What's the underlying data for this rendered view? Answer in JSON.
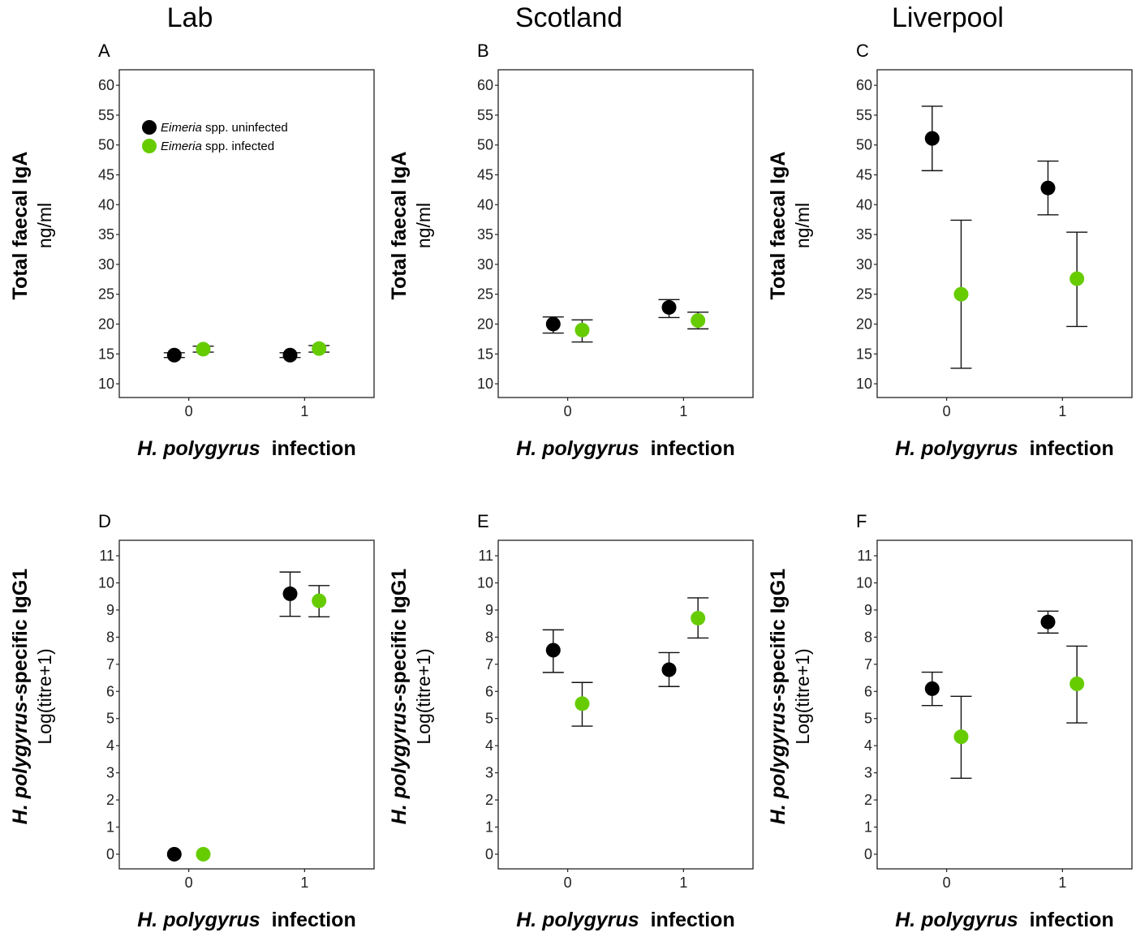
{
  "colors": {
    "uninfected": "#000000",
    "infected": "#66CC00"
  },
  "legend": [
    {
      "italic": "Eimeria",
      "rest": " spp. uninfected",
      "series": "uninfected"
    },
    {
      "italic": "Eimeria",
      "rest": " spp. infected",
      "series": "infected"
    }
  ],
  "column_titles": [
    "Lab",
    "Scotland",
    "Liverpool"
  ],
  "xlabel": {
    "italic": "H. polygyrus",
    "rest": "  infection"
  },
  "ylabels": {
    "iga": {
      "main": "Total faecal IgA",
      "sub": "ng/ml"
    },
    "igg1": {
      "main_italic": "H. polygyrus",
      "main_rest": "-specific IgG1",
      "sub": "Log(titre+1)"
    }
  },
  "chart_data": [
    {
      "panel": "A",
      "column": "Lab",
      "type": "scatter",
      "measure": "iga",
      "xlim": [
        -0.6,
        1.6
      ],
      "ylim": [
        7.7,
        62.6
      ],
      "xticks": [
        0,
        1
      ],
      "yticks": [
        10,
        15,
        20,
        25,
        30,
        35,
        40,
        45,
        50,
        55,
        60
      ],
      "legend_position": "top-left",
      "series": [
        {
          "name": "Eimeria spp. uninfected",
          "key": "uninfected",
          "points": [
            {
              "x": 0,
              "y": 14.8,
              "lo": 14.4,
              "hi": 15.2
            },
            {
              "x": 1,
              "y": 14.8,
              "lo": 14.4,
              "hi": 15.2
            }
          ]
        },
        {
          "name": "Eimeria spp. infected",
          "key": "infected",
          "points": [
            {
              "x": 0,
              "y": 15.8,
              "lo": 15.3,
              "hi": 16.3
            },
            {
              "x": 1,
              "y": 15.9,
              "lo": 15.3,
              "hi": 16.4
            }
          ]
        }
      ]
    },
    {
      "panel": "B",
      "column": "Scotland",
      "type": "scatter",
      "measure": "iga",
      "xlim": [
        -0.6,
        1.6
      ],
      "ylim": [
        7.7,
        62.6
      ],
      "xticks": [
        0,
        1
      ],
      "yticks": [
        10,
        15,
        20,
        25,
        30,
        35,
        40,
        45,
        50,
        55,
        60
      ],
      "series": [
        {
          "name": "Eimeria spp. uninfected",
          "key": "uninfected",
          "points": [
            {
              "x": 0,
              "y": 20.0,
              "lo": 18.5,
              "hi": 21.2
            },
            {
              "x": 1,
              "y": 22.8,
              "lo": 21.1,
              "hi": 24.1
            }
          ]
        },
        {
          "name": "Eimeria spp. infected",
          "key": "infected",
          "points": [
            {
              "x": 0,
              "y": 19.0,
              "lo": 17.0,
              "hi": 20.7
            },
            {
              "x": 1,
              "y": 20.6,
              "lo": 19.2,
              "hi": 22.0
            }
          ]
        }
      ]
    },
    {
      "panel": "C",
      "column": "Liverpool",
      "type": "scatter",
      "measure": "iga",
      "xlim": [
        -0.6,
        1.6
      ],
      "ylim": [
        7.7,
        62.6
      ],
      "xticks": [
        0,
        1
      ],
      "yticks": [
        10,
        15,
        20,
        25,
        30,
        35,
        40,
        45,
        50,
        55,
        60
      ],
      "series": [
        {
          "name": "Eimeria spp. uninfected",
          "key": "uninfected",
          "points": [
            {
              "x": 0,
              "y": 51.1,
              "lo": 45.7,
              "hi": 56.5
            },
            {
              "x": 1,
              "y": 42.8,
              "lo": 38.3,
              "hi": 47.3
            }
          ]
        },
        {
          "name": "Eimeria spp. infected",
          "key": "infected",
          "points": [
            {
              "x": 0,
              "y": 25.0,
              "lo": 12.6,
              "hi": 37.4
            },
            {
              "x": 1,
              "y": 27.6,
              "lo": 19.6,
              "hi": 35.4
            }
          ]
        }
      ]
    },
    {
      "panel": "D",
      "column": "Lab",
      "type": "scatter",
      "measure": "igg1",
      "xlim": [
        -0.6,
        1.6
      ],
      "ylim": [
        -0.54,
        11.57
      ],
      "xticks": [
        0,
        1
      ],
      "yticks": [
        0,
        1,
        2,
        3,
        4,
        5,
        6,
        7,
        8,
        9,
        10,
        11
      ],
      "series": [
        {
          "name": "Eimeria spp. uninfected",
          "key": "uninfected",
          "points": [
            {
              "x": 0,
              "y": 0.0,
              "lo": 0.0,
              "hi": 0.0
            },
            {
              "x": 1,
              "y": 9.6,
              "lo": 8.77,
              "hi": 10.4
            }
          ]
        },
        {
          "name": "Eimeria spp. infected",
          "key": "infected",
          "points": [
            {
              "x": 0,
              "y": 0.0,
              "lo": 0.0,
              "hi": 0.0
            },
            {
              "x": 1,
              "y": 9.34,
              "lo": 8.75,
              "hi": 9.9
            }
          ]
        }
      ]
    },
    {
      "panel": "E",
      "column": "Scotland",
      "type": "scatter",
      "measure": "igg1",
      "xlim": [
        -0.6,
        1.6
      ],
      "ylim": [
        -0.54,
        11.57
      ],
      "xticks": [
        0,
        1
      ],
      "yticks": [
        0,
        1,
        2,
        3,
        4,
        5,
        6,
        7,
        8,
        9,
        10,
        11
      ],
      "series": [
        {
          "name": "Eimeria spp. uninfected",
          "key": "uninfected",
          "points": [
            {
              "x": 0,
              "y": 7.52,
              "lo": 6.7,
              "hi": 8.27
            },
            {
              "x": 1,
              "y": 6.8,
              "lo": 6.18,
              "hi": 7.43
            }
          ]
        },
        {
          "name": "Eimeria spp. infected",
          "key": "infected",
          "points": [
            {
              "x": 0,
              "y": 5.55,
              "lo": 4.72,
              "hi": 6.33
            },
            {
              "x": 1,
              "y": 8.7,
              "lo": 7.97,
              "hi": 9.45
            }
          ]
        }
      ]
    },
    {
      "panel": "F",
      "column": "Liverpool",
      "type": "scatter",
      "measure": "igg1",
      "xlim": [
        -0.6,
        1.6
      ],
      "ylim": [
        -0.54,
        11.57
      ],
      "xticks": [
        0,
        1
      ],
      "yticks": [
        0,
        1,
        2,
        3,
        4,
        5,
        6,
        7,
        8,
        9,
        10,
        11
      ],
      "series": [
        {
          "name": "Eimeria spp. uninfected",
          "key": "uninfected",
          "points": [
            {
              "x": 0,
              "y": 6.1,
              "lo": 5.48,
              "hi": 6.71
            },
            {
              "x": 1,
              "y": 8.56,
              "lo": 8.15,
              "hi": 8.96
            }
          ]
        },
        {
          "name": "Eimeria spp. infected",
          "key": "infected",
          "points": [
            {
              "x": 0,
              "y": 4.33,
              "lo": 2.8,
              "hi": 5.82
            },
            {
              "x": 1,
              "y": 6.28,
              "lo": 4.84,
              "hi": 7.67
            }
          ]
        }
      ]
    }
  ]
}
